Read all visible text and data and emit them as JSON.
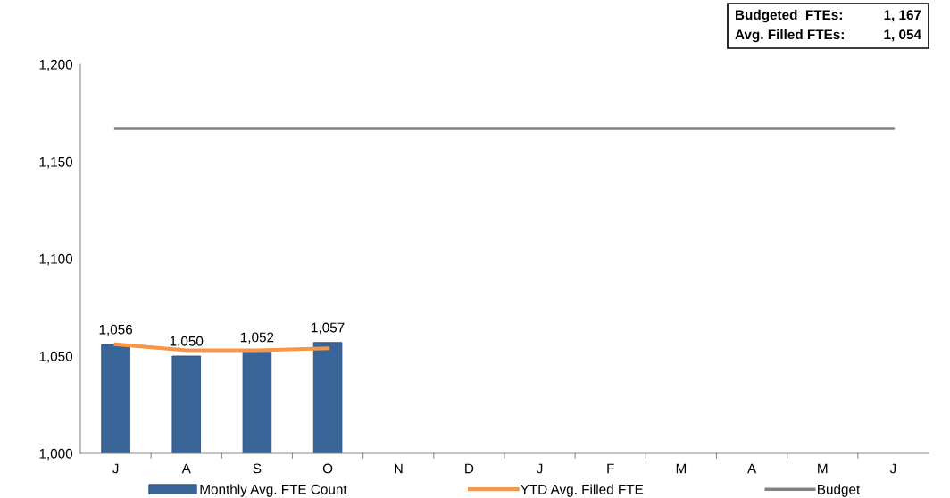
{
  "chart_data": {
    "type": "bar",
    "categories": [
      "J",
      "A",
      "S",
      "O",
      "N",
      "D",
      "J",
      "F",
      "M",
      "A",
      "M",
      "J"
    ],
    "series": [
      {
        "name": "Monthly Avg. FTE Count",
        "color": "#3a6599",
        "values": [
          1056,
          1050,
          1052,
          1057,
          null,
          null,
          null,
          null,
          null,
          null,
          null,
          null
        ],
        "value_labels": [
          "1,056",
          "1,050",
          "1,052",
          "1,057",
          null,
          null,
          null,
          null,
          null,
          null,
          null,
          null
        ]
      },
      {
        "name": "YTD Avg. Filled FTE",
        "type": "line",
        "color": "#f79646",
        "values": [
          1056,
          1053,
          1053,
          1054,
          null,
          null,
          null,
          null,
          null,
          null,
          null,
          null
        ]
      },
      {
        "name": "Budget",
        "type": "line",
        "color": "#808080",
        "values": [
          1167,
          1167,
          1167,
          1167,
          1167,
          1167,
          1167,
          1167,
          1167,
          1167,
          1167,
          1167
        ]
      }
    ],
    "ylim": [
      1000,
      1200
    ],
    "yticks": [
      {
        "value": 1000,
        "label": "1,000"
      },
      {
        "value": 1050,
        "label": "1,050"
      },
      {
        "value": 1100,
        "label": "1,100"
      },
      {
        "value": 1150,
        "label": "1,150"
      },
      {
        "value": 1200,
        "label": "1,200"
      }
    ],
    "annotations": [
      "Budgeted  FTEs:",
      "1, 167",
      "Avg. Filled FTEs:",
      "1, 054"
    ],
    "legend": "bottom",
    "grid": false,
    "marker": "none",
    "line_style": "solid"
  }
}
